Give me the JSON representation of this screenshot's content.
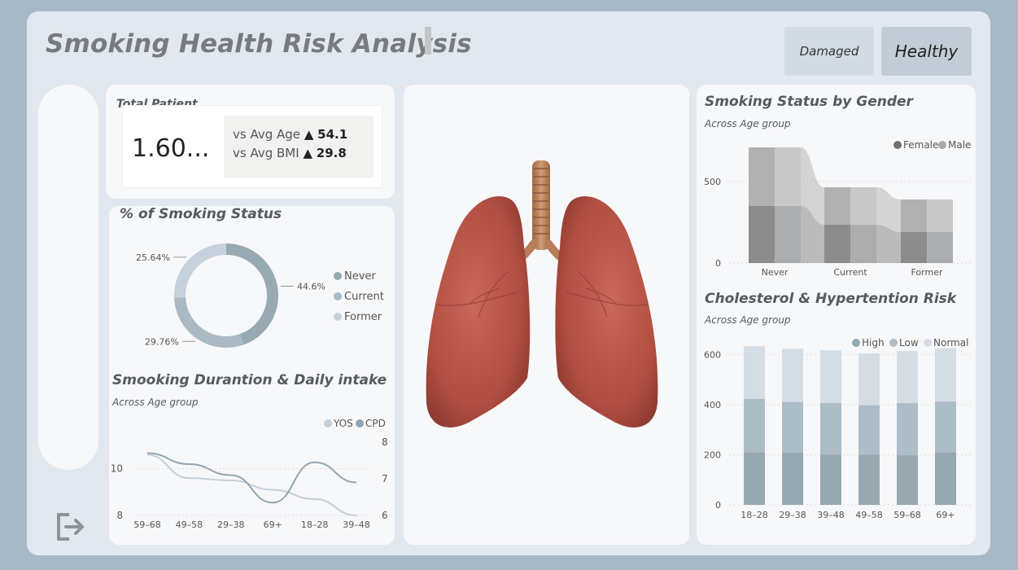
{
  "header": {
    "title": "Smoking Health Risk Analysis"
  },
  "toggles": {
    "damaged": "Damaged",
    "healthy": "Healthy"
  },
  "kpi": {
    "label": "Total Patient",
    "value": "1.60...",
    "avg_age_label": "vs Avg Age",
    "avg_age_value": "54.1",
    "avg_bmi_label": "vs Avg BMI",
    "avg_bmi_value": "29.8",
    "arrow": "▲"
  },
  "donut": {
    "title": "% of Smoking Status"
  },
  "smoking_duration": {
    "title": "Smooking Durantion & Daily intake",
    "subtitle": "Across Age group"
  },
  "gender": {
    "title": "Smoking Status by Gender",
    "subtitle": "Across Age group"
  },
  "cholesterol": {
    "title": "Cholesterol & Hypertention Risk",
    "subtitle": "Across Age group"
  },
  "colors": {
    "never": "#97a9b2",
    "current": "#a9bac5",
    "former": "#c5d1dc",
    "female": "#707070",
    "male": "#a8a8a8",
    "high": "#97a8b0",
    "low": "#adbdc8",
    "normal": "#d5dde4"
  },
  "icons": {
    "logout": "logout-icon",
    "lungs": "lungs-image"
  },
  "chart_data": [
    {
      "type": "pie",
      "title": "% of Smoking Status",
      "categories": [
        "Never",
        "Current",
        "Former"
      ],
      "values": [
        44.6,
        29.76,
        25.64
      ],
      "value_labels": [
        "44.6%",
        "29.76%",
        "25.64%"
      ],
      "legend": "right"
    },
    {
      "type": "line",
      "categories": [
        "59–68",
        "49–58",
        "29–38",
        "69+",
        "18–28",
        "39–48"
      ],
      "series": [
        {
          "name": "YOS",
          "axis": "left",
          "values": [
            10.6,
            9.6,
            9.5,
            9.1,
            8.7,
            8.0
          ]
        },
        {
          "name": "CPD",
          "axis": "right",
          "values": [
            7.7,
            7.4,
            7.1,
            6.35,
            7.45,
            6.9
          ]
        }
      ],
      "y_left_ticks": [
        "8",
        "10"
      ],
      "y_right_ticks": [
        "6",
        "7",
        "8"
      ],
      "y_left_lim": [
        8,
        11
      ],
      "y_right_lim": [
        6,
        8
      ],
      "legend": "top-right"
    },
    {
      "type": "area",
      "subtype": "ribbon",
      "categories": [
        "Never",
        "Current",
        "Former"
      ],
      "series": [
        {
          "name": "Female",
          "values": [
            350,
            235,
            190
          ]
        },
        {
          "name": "Male",
          "values": [
            360,
            230,
            200
          ]
        }
      ],
      "y_ticks": [
        "0",
        "500"
      ],
      "ylim": [
        0,
        600
      ],
      "legend": "top-right"
    },
    {
      "type": "bar",
      "stacked": true,
      "categories": [
        "18–28",
        "29–38",
        "39–48",
        "49–58",
        "59–68",
        "69+"
      ],
      "series": [
        {
          "name": "High",
          "values": [
            210,
            208,
            200,
            200,
            198,
            210
          ]
        },
        {
          "name": "Low",
          "values": [
            213,
            203,
            207,
            198,
            208,
            203
          ]
        },
        {
          "name": "Normal",
          "values": [
            210,
            212,
            210,
            207,
            208,
            212
          ]
        }
      ],
      "y_ticks": [
        "0",
        "200",
        "400",
        "600"
      ],
      "ylim": [
        0,
        650
      ],
      "legend": "top-right"
    }
  ]
}
